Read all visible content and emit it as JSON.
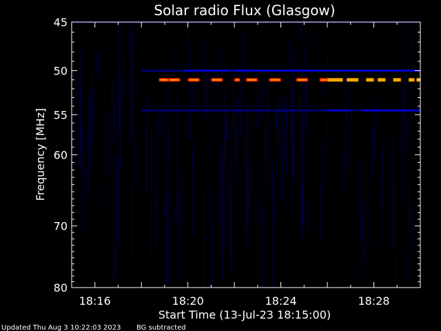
{
  "chart_data": {
    "type": "heatmap",
    "title": "Solar radio Flux (Glasgow)",
    "xlabel": "Start Time (13-Jul-23 18:15:00)",
    "ylabel": "Frequency [MHz]",
    "x_ticks": [
      "18:16",
      "18:20",
      "18:24",
      "18:28"
    ],
    "y_ticks": [
      45,
      50,
      55,
      60,
      70,
      80
    ],
    "xlim": [
      "18:15:00",
      "18:30:00"
    ],
    "ylim": [
      45,
      80
    ],
    "y_scale": "log",
    "grid": false,
    "colors": {
      "background": "#000000",
      "axis": "#ffffff",
      "faint": "#000066",
      "low": "#0000cc",
      "mid": "#ff2200",
      "high": "#ffaa00",
      "peak": "#ffff66"
    },
    "emission_features": [
      {
        "name": "51 MHz band",
        "freq_mhz": 51.0,
        "intensity": "high",
        "segments": [
          [
            "18:18:45",
            "18:19:10"
          ],
          [
            "18:19:10",
            "18:19:40"
          ],
          [
            "18:20:00",
            "18:20:30"
          ],
          [
            "18:21:00",
            "18:21:30"
          ],
          [
            "18:22:00",
            "18:22:15"
          ],
          [
            "18:22:30",
            "18:23:00"
          ],
          [
            "18:23:30",
            "18:24:00"
          ],
          [
            "18:24:40",
            "18:25:10"
          ],
          [
            "18:25:40",
            "18:26:00"
          ],
          [
            "18:26:00",
            "18:26:40"
          ],
          [
            "18:26:50",
            "18:27:20"
          ],
          [
            "18:27:40",
            "18:28:00"
          ],
          [
            "18:28:10",
            "18:28:30"
          ],
          [
            "18:28:50",
            "18:29:10"
          ],
          [
            "18:29:30",
            "18:29:45"
          ],
          [
            "18:29:50",
            "18:30:00"
          ]
        ]
      },
      {
        "name": "50 MHz band",
        "freq_mhz": 50.0,
        "intensity": "low",
        "segments": [
          [
            "18:18:00",
            "18:22:00"
          ],
          [
            "18:19:50",
            "18:21:50"
          ],
          [
            "18:22:00",
            "18:30:00"
          ]
        ]
      },
      {
        "name": "54.5 MHz band",
        "freq_mhz": 54.5,
        "intensity": "low",
        "segments": [
          [
            "18:18:00",
            "18:30:00"
          ],
          [
            "18:26:00",
            "18:27:00"
          ],
          [
            "18:27:30",
            "18:30:00"
          ]
        ]
      },
      {
        "name": "45 MHz band",
        "freq_mhz": 45.0,
        "intensity": "faint",
        "segments": [
          [
            "18:15:00",
            "18:30:00"
          ]
        ]
      }
    ]
  },
  "footer": {
    "updated": "Updated Thu Aug  3 10:22:03 2023",
    "note": "BG subtracted"
  }
}
